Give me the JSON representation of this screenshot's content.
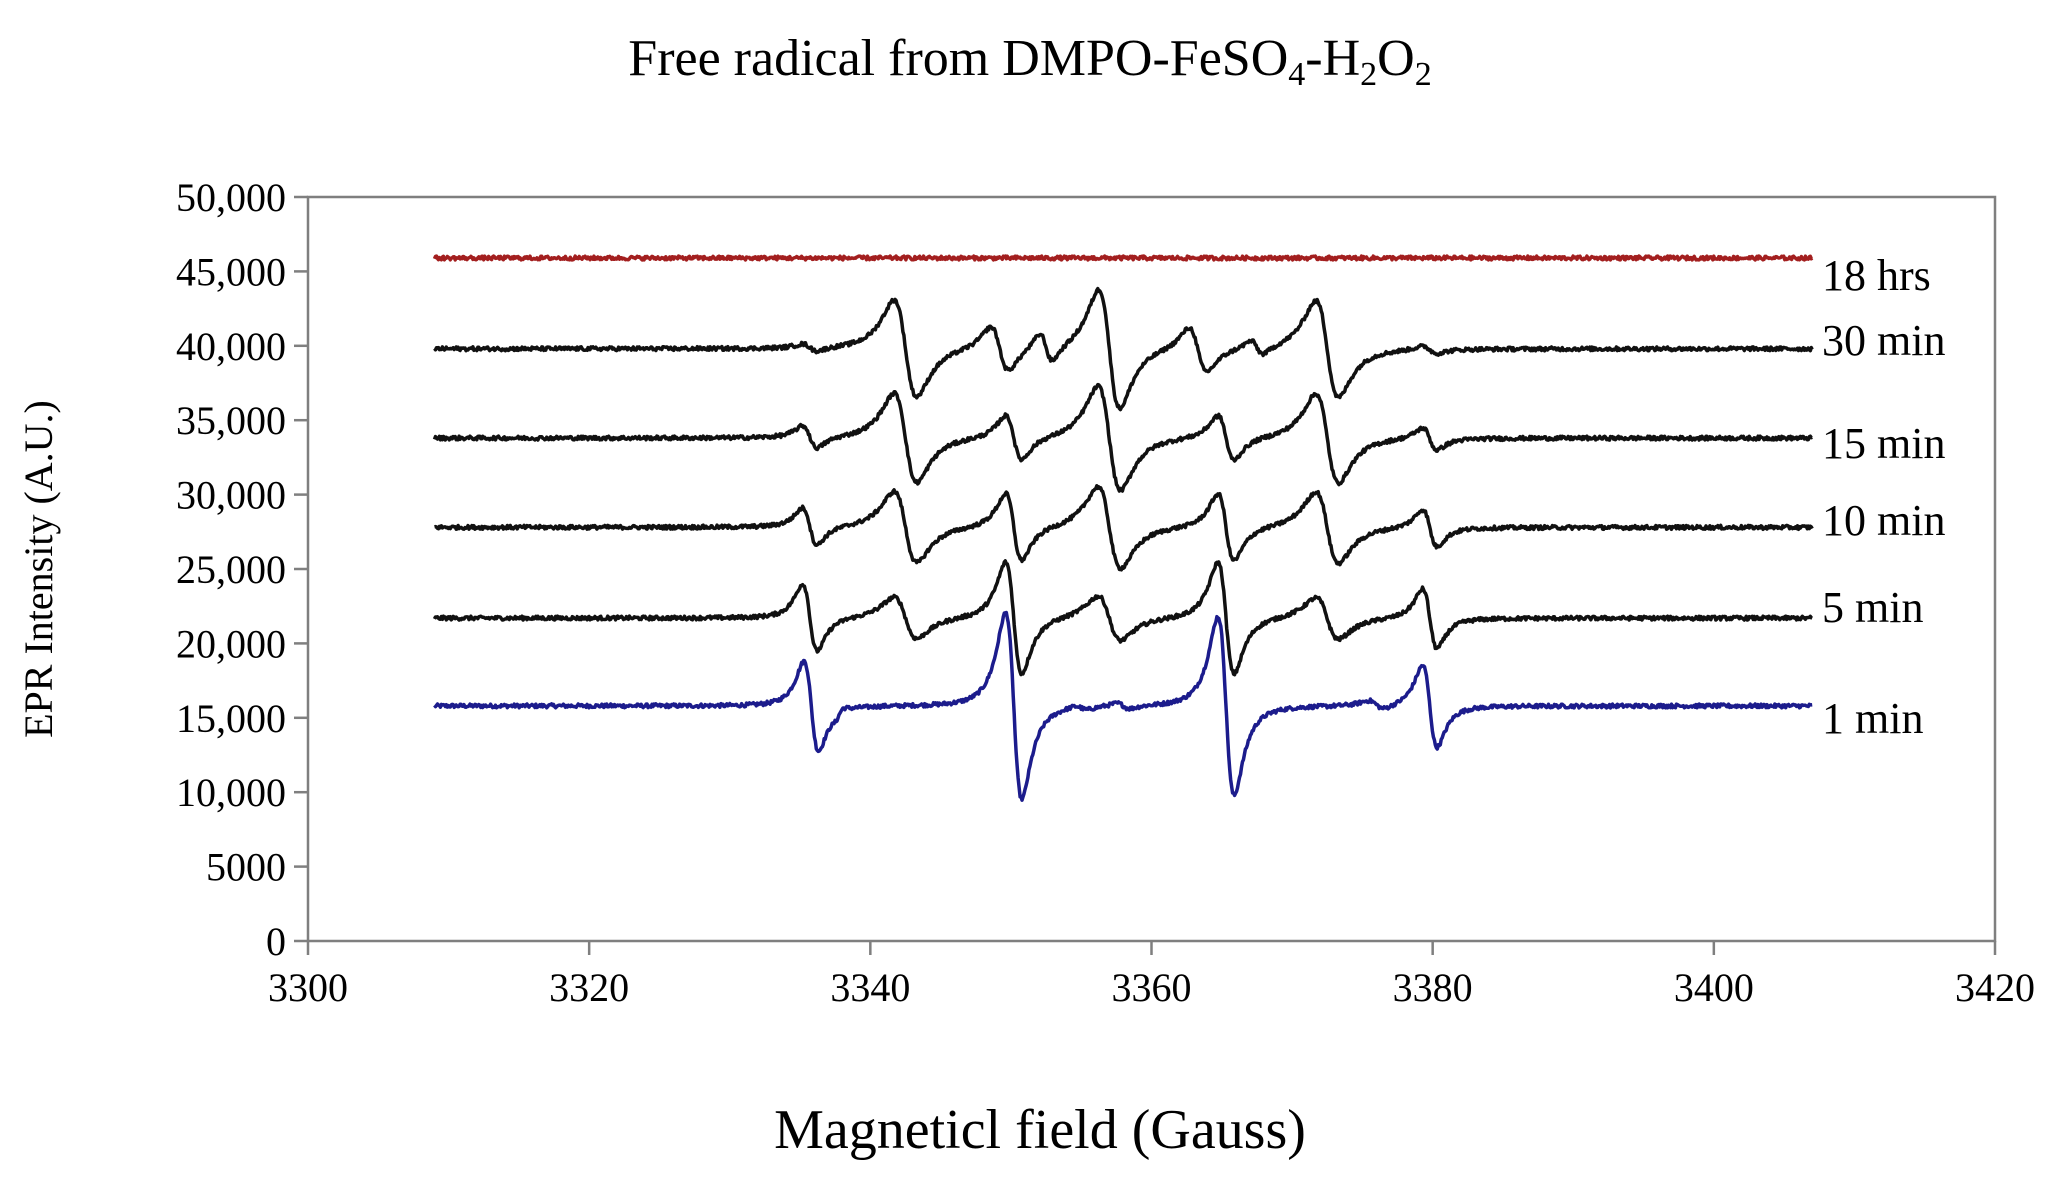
{
  "chart_data": {
    "type": "line",
    "title": {
      "prefix": "Free radical from DMPO-FeSO",
      "sub1": "4",
      "mid1": "-H",
      "sub2": "2",
      "mid2": "O",
      "sub3": "2"
    },
    "xlabel": "Magneticl field (Gauss)",
    "ylabel": "EPR Intensity  (A.U.)",
    "xlim": [
      3300,
      3420
    ],
    "ylim": [
      0,
      50000
    ],
    "x_ticks": [
      "3300",
      "3320",
      "3340",
      "3360",
      "3380",
      "3400",
      "3420"
    ],
    "y_ticks": [
      "0",
      "5000",
      "10,000",
      "15,000",
      "20,000",
      "25,000",
      "30,000",
      "35,000",
      "40,000",
      "45,000",
      "50,000"
    ],
    "x_range_data": [
      3309,
      3407
    ],
    "colors": {
      "red": "#a31f1f",
      "black": "#111111",
      "blue": "#1c1c8c",
      "axis": "#7f7f7f"
    },
    "series": [
      {
        "name": "1 min",
        "color": "#1c1c8c",
        "baseline": 15800,
        "peaks": [
          {
            "x": 3335.8,
            "h": 6000,
            "w": 0.9
          },
          {
            "x": 3337.8,
            "h": -500,
            "w": 0.5
          },
          {
            "x": 3350.2,
            "h": 12500,
            "w": 1.0
          },
          {
            "x": 3355.0,
            "h": 300,
            "w": 0.8
          },
          {
            "x": 3358.0,
            "h": 400,
            "w": 0.8
          },
          {
            "x": 3365.3,
            "h": 12000,
            "w": 1.0
          },
          {
            "x": 3376.0,
            "h": 600,
            "w": 1.0
          },
          {
            "x": 3379.8,
            "h": 5500,
            "w": 0.9
          }
        ]
      },
      {
        "name": "5 min",
        "color": "#111111",
        "baseline": 21700,
        "peaks": [
          {
            "x": 3335.7,
            "h": 4500,
            "w": 0.9
          },
          {
            "x": 3342.5,
            "h": 2800,
            "w": 1.4
          },
          {
            "x": 3350.2,
            "h": 7500,
            "w": 1.0
          },
          {
            "x": 3357.0,
            "h": 3000,
            "w": 1.4
          },
          {
            "x": 3365.3,
            "h": 7500,
            "w": 1.0
          },
          {
            "x": 3372.5,
            "h": 2800,
            "w": 1.4
          },
          {
            "x": 3379.8,
            "h": 4000,
            "w": 0.9
          }
        ]
      },
      {
        "name": "10 min",
        "color": "#111111",
        "baseline": 27800,
        "peaks": [
          {
            "x": 3335.7,
            "h": 2500,
            "w": 0.9
          },
          {
            "x": 3342.5,
            "h": 4800,
            "w": 1.4
          },
          {
            "x": 3350.2,
            "h": 4500,
            "w": 1.0
          },
          {
            "x": 3357.0,
            "h": 5500,
            "w": 1.4
          },
          {
            "x": 3365.3,
            "h": 4500,
            "w": 1.0
          },
          {
            "x": 3372.5,
            "h": 4800,
            "w": 1.4
          },
          {
            "x": 3379.8,
            "h": 2500,
            "w": 0.9
          }
        ]
      },
      {
        "name": "15 min",
        "color": "#111111",
        "baseline": 33800,
        "peaks": [
          {
            "x": 3335.7,
            "h": 1500,
            "w": 0.9
          },
          {
            "x": 3342.5,
            "h": 6000,
            "w": 1.4
          },
          {
            "x": 3350.2,
            "h": 3000,
            "w": 1.0
          },
          {
            "x": 3357.0,
            "h": 7000,
            "w": 1.4
          },
          {
            "x": 3365.3,
            "h": 3000,
            "w": 1.0
          },
          {
            "x": 3372.5,
            "h": 6000,
            "w": 1.4
          },
          {
            "x": 3379.8,
            "h": 1500,
            "w": 0.9
          }
        ]
      },
      {
        "name": "30 min",
        "color": "#111111",
        "baseline": 39800,
        "peaks": [
          {
            "x": 3335.7,
            "h": 500,
            "w": 0.9
          },
          {
            "x": 3342.5,
            "h": 6500,
            "w": 1.4
          },
          {
            "x": 3349.2,
            "h": 3000,
            "w": 1.1
          },
          {
            "x": 3352.5,
            "h": 2000,
            "w": 0.8
          },
          {
            "x": 3357.0,
            "h": 8000,
            "w": 1.3
          },
          {
            "x": 3363.3,
            "h": 3000,
            "w": 1.1
          },
          {
            "x": 3367.5,
            "h": 1000,
            "w": 0.8
          },
          {
            "x": 3372.5,
            "h": 6500,
            "w": 1.4
          },
          {
            "x": 3379.8,
            "h": 500,
            "w": 0.9
          }
        ]
      },
      {
        "name": "18 hrs",
        "color": "#a31f1f",
        "baseline": 45900,
        "peaks": []
      }
    ]
  }
}
